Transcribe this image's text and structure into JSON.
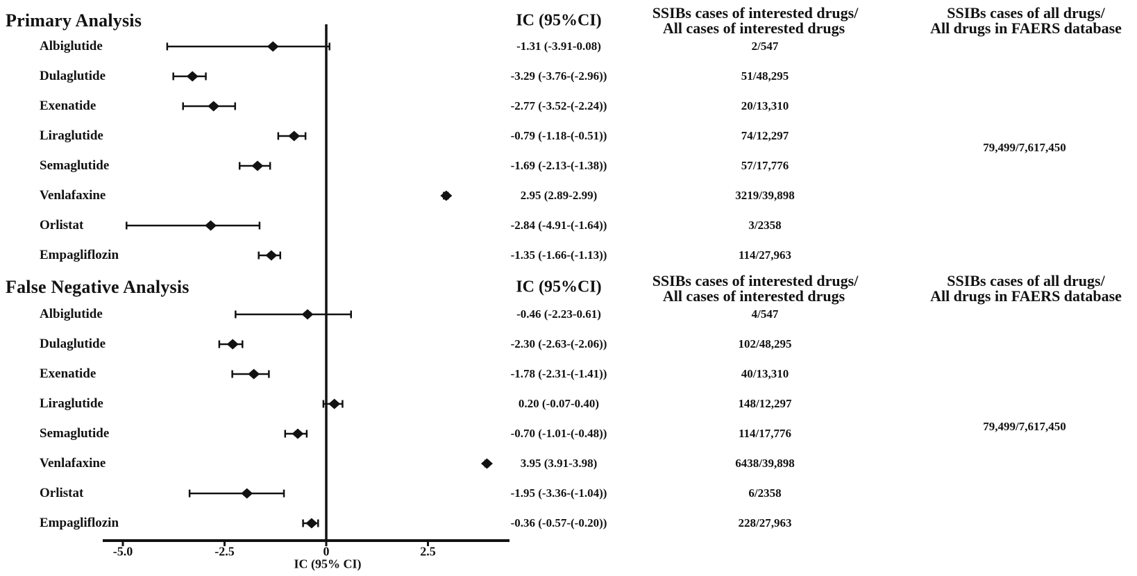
{
  "colors": {
    "ink": "#121212",
    "background": "#ffffff"
  },
  "chart_data": {
    "type": "forest",
    "xlabel": "IC (95% CI)",
    "x_ticks": [
      -5.0,
      -2.5,
      0,
      2.5
    ],
    "x_tick_labels": [
      "-5.0",
      "-2.5",
      "0",
      "2.5"
    ],
    "xlim": [
      -5.5,
      4.5
    ],
    "reference_x": 0,
    "grid": "off",
    "marker": "black-diamond-with-capped-ci",
    "panels": [
      {
        "title": "Primary Analysis",
        "ic_header": "IC (95%CI)",
        "col3_header": [
          "SSIBs cases of interested drugs/",
          "All cases of interested drugs"
        ],
        "col4_header": [
          "SSIBs cases of all drugs/",
          "All drugs in FAERS database"
        ],
        "col4_value": "79,499/7,617,450",
        "rows": [
          {
            "drug": "Albiglutide",
            "ic": -1.31,
            "lo": -3.91,
            "hi": 0.08,
            "ic_label": "-1.31 (-3.91-0.08)",
            "cases": "2/547"
          },
          {
            "drug": "Dulaglutide",
            "ic": -3.29,
            "lo": -3.76,
            "hi": -2.96,
            "ic_label": "-3.29 (-3.76-(-2.96))",
            "cases": "51/48,295"
          },
          {
            "drug": "Exenatide",
            "ic": -2.77,
            "lo": -3.52,
            "hi": -2.24,
            "ic_label": "-2.77 (-3.52-(-2.24))",
            "cases": "20/13,310"
          },
          {
            "drug": "Liraglutide",
            "ic": -0.79,
            "lo": -1.18,
            "hi": -0.51,
            "ic_label": "-0.79 (-1.18-(-0.51))",
            "cases": "74/12,297"
          },
          {
            "drug": "Semaglutide",
            "ic": -1.69,
            "lo": -2.13,
            "hi": -1.38,
            "ic_label": "-1.69 (-2.13-(-1.38))",
            "cases": "57/17,776"
          },
          {
            "drug": "Venlafaxine",
            "ic": 2.95,
            "lo": 2.89,
            "hi": 2.99,
            "ic_label": "2.95 (2.89-2.99)",
            "cases": "3219/39,898"
          },
          {
            "drug": "Orlistat",
            "ic": -2.84,
            "lo": -4.91,
            "hi": -1.64,
            "ic_label": "-2.84 (-4.91-(-1.64))",
            "cases": "3/2358"
          },
          {
            "drug": "Empagliflozin",
            "ic": -1.35,
            "lo": -1.66,
            "hi": -1.13,
            "ic_label": "-1.35 (-1.66-(-1.13))",
            "cases": "114/27,963"
          }
        ]
      },
      {
        "title": "False Negative Analysis",
        "ic_header": "IC (95%CI)",
        "col3_header": [
          "SSIBs cases of interested drugs/",
          "All cases of interested drugs"
        ],
        "col4_header": [
          "SSIBs cases of all drugs/",
          "All drugs in FAERS database"
        ],
        "col4_value": "79,499/7,617,450",
        "rows": [
          {
            "drug": "Albiglutide",
            "ic": -0.46,
            "lo": -2.23,
            "hi": 0.61,
            "ic_label": "-0.46 (-2.23-0.61)",
            "cases": "4/547"
          },
          {
            "drug": "Dulaglutide",
            "ic": -2.3,
            "lo": -2.63,
            "hi": -2.06,
            "ic_label": "-2.30 (-2.63-(-2.06))",
            "cases": "102/48,295"
          },
          {
            "drug": "Exenatide",
            "ic": -1.78,
            "lo": -2.31,
            "hi": -1.41,
            "ic_label": "-1.78 (-2.31-(-1.41))",
            "cases": "40/13,310"
          },
          {
            "drug": "Liraglutide",
            "ic": 0.2,
            "lo": -0.07,
            "hi": 0.4,
            "ic_label": "0.20 (-0.07-0.40)",
            "cases": "148/12,297"
          },
          {
            "drug": "Semaglutide",
            "ic": -0.7,
            "lo": -1.01,
            "hi": -0.48,
            "ic_label": "-0.70 (-1.01-(-0.48))",
            "cases": "114/17,776"
          },
          {
            "drug": "Venlafaxine",
            "ic": 3.95,
            "lo": 3.91,
            "hi": 3.98,
            "ic_label": "3.95 (3.91-3.98)",
            "cases": "6438/39,898"
          },
          {
            "drug": "Orlistat",
            "ic": -1.95,
            "lo": -3.36,
            "hi": -1.04,
            "ic_label": "-1.95 (-3.36-(-1.04))",
            "cases": "6/2358"
          },
          {
            "drug": "Empagliflozin",
            "ic": -0.36,
            "lo": -0.57,
            "hi": -0.2,
            "ic_label": "-0.36 (-0.57-(-0.20))",
            "cases": "228/27,963"
          }
        ]
      }
    ]
  }
}
